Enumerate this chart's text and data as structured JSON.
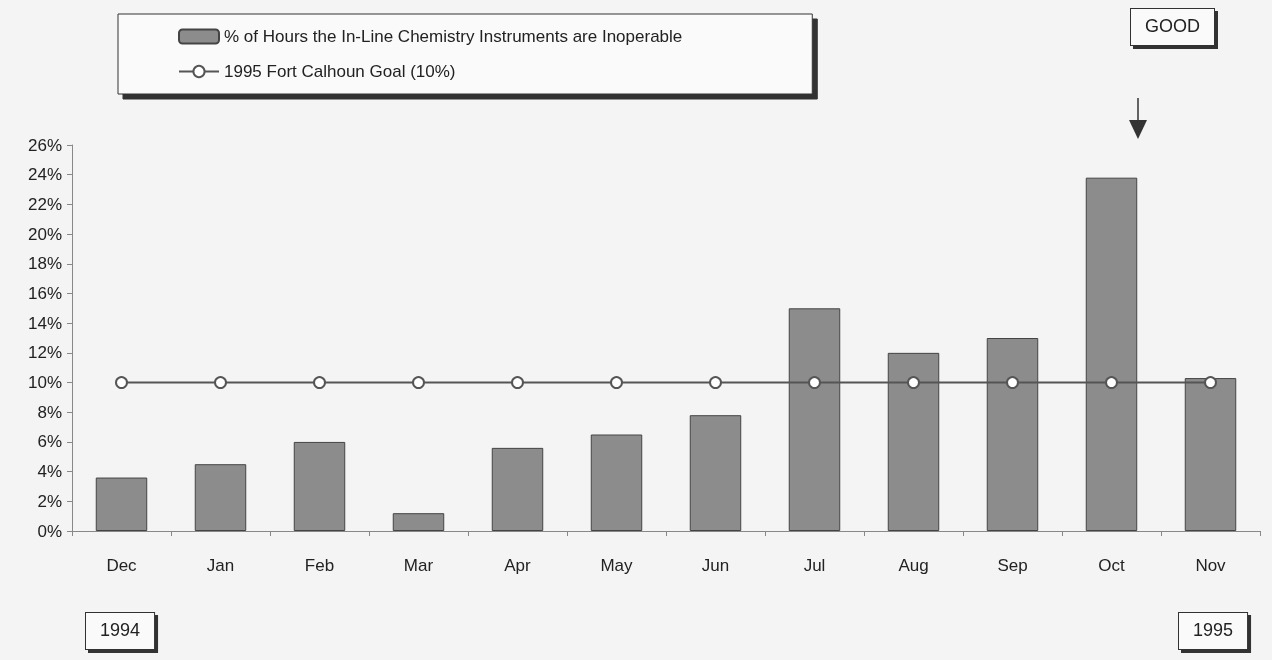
{
  "chart_data": {
    "type": "bar",
    "categories": [
      "Dec",
      "Jan",
      "Feb",
      "Mar",
      "Apr",
      "May",
      "Jun",
      "Jul",
      "Aug",
      "Sep",
      "Oct",
      "Nov"
    ],
    "series": [
      {
        "name": "% of Hours the In-Line Chemistry Instruments are Inoperable",
        "color": "#8c8c8c",
        "values": [
          3.6,
          4.5,
          6.0,
          1.2,
          5.6,
          6.5,
          7.8,
          15.0,
          12.0,
          13.0,
          23.8,
          10.3
        ]
      },
      {
        "name": "1995 Fort Calhoun Goal (10%)",
        "type": "line",
        "color": "#555555",
        "marker": "circle",
        "values": [
          10,
          10,
          10,
          10,
          10,
          10,
          10,
          10,
          10,
          10,
          10,
          10
        ]
      }
    ],
    "ylim": [
      0,
      26
    ],
    "yticks": [
      {
        "value": 0,
        "label": "0%"
      },
      {
        "value": 2,
        "label": "2%"
      },
      {
        "value": 4,
        "label": "4%"
      },
      {
        "value": 6,
        "label": "6%"
      },
      {
        "value": 8,
        "label": "8%"
      },
      {
        "value": 10,
        "label": "10%"
      },
      {
        "value": 12,
        "label": "12%"
      },
      {
        "value": 14,
        "label": "14%"
      },
      {
        "value": 16,
        "label": "16%"
      },
      {
        "value": 18,
        "label": "18%"
      },
      {
        "value": 20,
        "label": "20%"
      },
      {
        "value": 22,
        "label": "22%"
      },
      {
        "value": 24,
        "label": "24%"
      },
      {
        "value": 26,
        "label": "26%"
      }
    ],
    "grid": false,
    "legend": "top left",
    "annotations": [
      "GOOD",
      "1994",
      "1995"
    ]
  }
}
